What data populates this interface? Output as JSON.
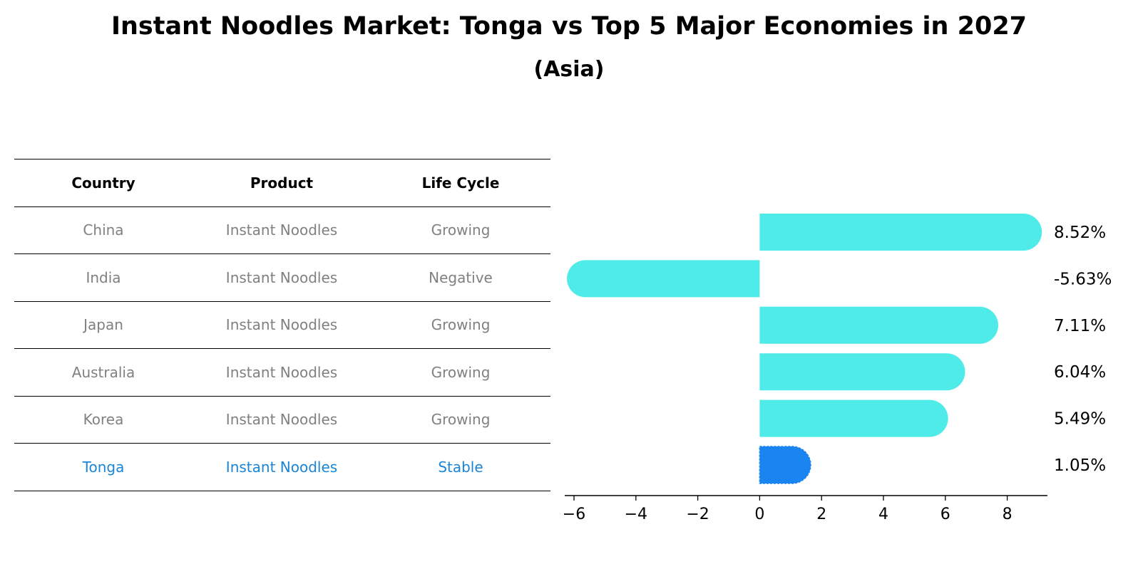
{
  "title": "Instant Noodles Market: Tonga vs Top 5 Major Economies in 2027",
  "subtitle": "(Asia)",
  "table": {
    "headers": [
      "Country",
      "Product",
      "Life Cycle"
    ],
    "rows": [
      {
        "country": "China",
        "product": "Instant Noodles",
        "life_cycle": "Growing"
      },
      {
        "country": "India",
        "product": "Instant Noodles",
        "life_cycle": "Negative"
      },
      {
        "country": "Japan",
        "product": "Instant Noodles",
        "life_cycle": "Growing"
      },
      {
        "country": "Australia",
        "product": "Instant Noodles",
        "life_cycle": "Growing"
      },
      {
        "country": "Korea",
        "product": "Instant Noodles",
        "life_cycle": "Growing"
      },
      {
        "country": "Tonga",
        "product": "Instant Noodles",
        "life_cycle": "Stable"
      }
    ]
  },
  "colors": {
    "bar": "#4eebe9",
    "highlight": "#1a85f0",
    "highlight_text": "#1a85d6",
    "muted_text": "#808080"
  },
  "chart_data": {
    "type": "bar",
    "orientation": "horizontal",
    "categories": [
      "China",
      "India",
      "Japan",
      "Australia",
      "Korea",
      "Tonga"
    ],
    "values": [
      8.52,
      -5.63,
      7.11,
      6.04,
      5.49,
      1.05
    ],
    "value_labels": [
      "8.52%",
      "-5.63%",
      "7.11%",
      "6.04%",
      "5.49%",
      "1.05%"
    ],
    "highlight_category": "Tonga",
    "xlim": [
      -6.3,
      9.3
    ],
    "xticks": [
      -6,
      -4,
      -2,
      0,
      2,
      4,
      6,
      8
    ],
    "xtick_labels": [
      "−6",
      "−4",
      "−2",
      "0",
      "2",
      "4",
      "6",
      "8"
    ],
    "xlabel": "",
    "ylabel": "",
    "grid": false
  }
}
